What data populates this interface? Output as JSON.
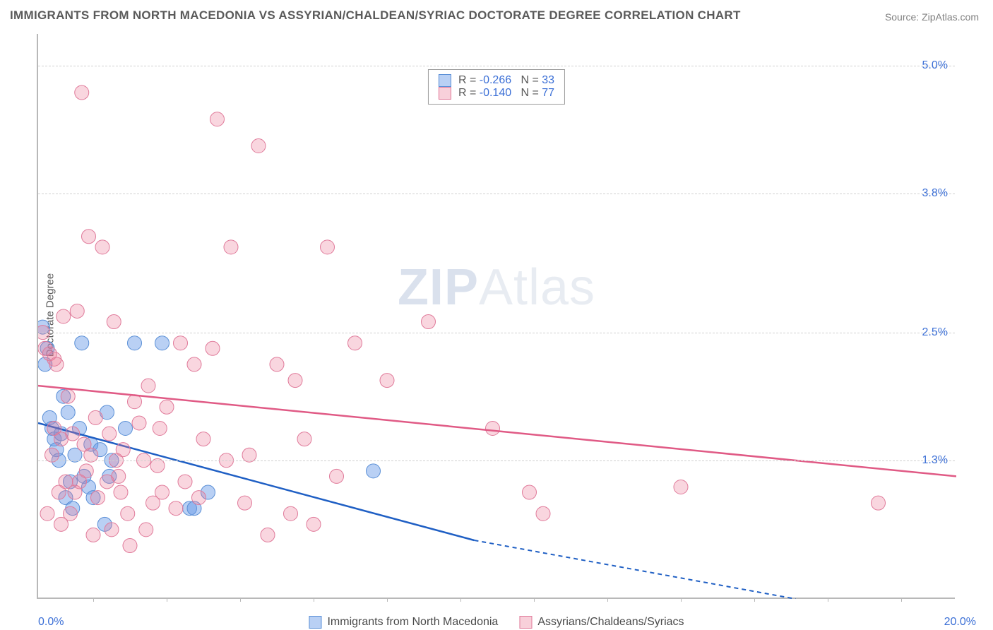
{
  "title": "IMMIGRANTS FROM NORTH MACEDONIA VS ASSYRIAN/CHALDEAN/SYRIAC DOCTORATE DEGREE CORRELATION CHART",
  "source": "Source: ZipAtlas.com",
  "ylabel": "Doctorate Degree",
  "watermark_zip": "ZIP",
  "watermark_rest": "Atlas",
  "chart": {
    "type": "scatter",
    "background_color": "#ffffff",
    "grid_color": "#d0d0d0",
    "axis_color": "#b8b8b8",
    "xlim": [
      0,
      20
    ],
    "ylim": [
      0,
      5.3
    ],
    "x_axis_labels": {
      "min": "0.0%",
      "max": "20.0%"
    },
    "x_tick_positions_pct": [
      6,
      14,
      22,
      30,
      38,
      46,
      54,
      62,
      70,
      78,
      86,
      94
    ],
    "y_ticks": [
      {
        "value": 1.3,
        "label": "1.3%"
      },
      {
        "value": 2.5,
        "label": "2.5%"
      },
      {
        "value": 3.8,
        "label": "3.8%"
      },
      {
        "value": 5.0,
        "label": "5.0%"
      }
    ],
    "series": [
      {
        "name": "Immigrants from North Macedonia",
        "fill_color": "rgba(100,150,230,0.45)",
        "stroke_color": "#5a8fd6",
        "trend_color": "#1f5fc4",
        "R": "-0.266",
        "N": "33",
        "marker_radius": 10,
        "trend_line": {
          "x1": 0,
          "y1": 1.65,
          "x2": 9.5,
          "y2": 0.55,
          "dashed_after_x": 9.5,
          "x3": 16.5,
          "y3": 0.0
        },
        "points": [
          [
            0.1,
            2.55
          ],
          [
            0.15,
            2.2
          ],
          [
            0.2,
            2.35
          ],
          [
            0.25,
            1.7
          ],
          [
            0.3,
            1.6
          ],
          [
            0.35,
            1.5
          ],
          [
            0.4,
            1.4
          ],
          [
            0.45,
            1.3
          ],
          [
            0.5,
            1.55
          ],
          [
            0.6,
            0.95
          ],
          [
            0.65,
            1.75
          ],
          [
            0.7,
            1.1
          ],
          [
            0.75,
            0.85
          ],
          [
            0.8,
            1.35
          ],
          [
            0.9,
            1.6
          ],
          [
            0.95,
            2.4
          ],
          [
            1.0,
            1.15
          ],
          [
            1.1,
            1.05
          ],
          [
            1.15,
            1.45
          ],
          [
            1.2,
            0.95
          ],
          [
            1.35,
            1.4
          ],
          [
            1.45,
            0.7
          ],
          [
            1.5,
            1.75
          ],
          [
            1.55,
            1.15
          ],
          [
            1.6,
            1.3
          ],
          [
            1.9,
            1.6
          ],
          [
            2.1,
            2.4
          ],
          [
            2.7,
            2.4
          ],
          [
            3.3,
            0.85
          ],
          [
            3.4,
            0.85
          ],
          [
            3.7,
            1.0
          ],
          [
            7.3,
            1.2
          ],
          [
            0.55,
            1.9
          ]
        ]
      },
      {
        "name": "Assyrians/Chaldeans/Syriacs",
        "fill_color": "rgba(235,120,150,0.30)",
        "stroke_color": "#e07a9a",
        "trend_color": "#e05a85",
        "R": "-0.140",
        "N": "77",
        "marker_radius": 10,
        "trend_line": {
          "x1": 0,
          "y1": 2.0,
          "x2": 20,
          "y2": 1.15
        },
        "points": [
          [
            0.1,
            2.5
          ],
          [
            0.15,
            2.35
          ],
          [
            0.2,
            0.8
          ],
          [
            0.25,
            2.3
          ],
          [
            0.3,
            1.35
          ],
          [
            0.35,
            2.25
          ],
          [
            0.35,
            1.6
          ],
          [
            0.4,
            2.2
          ],
          [
            0.45,
            1.0
          ],
          [
            0.5,
            0.7
          ],
          [
            0.5,
            1.5
          ],
          [
            0.55,
            2.65
          ],
          [
            0.6,
            1.1
          ],
          [
            0.65,
            1.9
          ],
          [
            0.7,
            0.8
          ],
          [
            0.75,
            1.55
          ],
          [
            0.8,
            1.0
          ],
          [
            0.85,
            2.7
          ],
          [
            0.9,
            1.1
          ],
          [
            0.95,
            4.75
          ],
          [
            1.0,
            1.45
          ],
          [
            1.05,
            1.2
          ],
          [
            1.1,
            3.4
          ],
          [
            1.15,
            1.35
          ],
          [
            1.2,
            0.6
          ],
          [
            1.25,
            1.7
          ],
          [
            1.3,
            0.95
          ],
          [
            1.4,
            3.3
          ],
          [
            1.5,
            1.1
          ],
          [
            1.55,
            1.55
          ],
          [
            1.6,
            0.65
          ],
          [
            1.65,
            2.6
          ],
          [
            1.7,
            1.3
          ],
          [
            1.75,
            1.15
          ],
          [
            1.8,
            1.0
          ],
          [
            1.85,
            1.4
          ],
          [
            1.95,
            0.8
          ],
          [
            2.0,
            0.5
          ],
          [
            2.1,
            1.85
          ],
          [
            2.2,
            1.65
          ],
          [
            2.3,
            1.3
          ],
          [
            2.4,
            2.0
          ],
          [
            2.5,
            0.9
          ],
          [
            2.6,
            1.25
          ],
          [
            2.65,
            1.6
          ],
          [
            2.7,
            1.0
          ],
          [
            2.8,
            1.8
          ],
          [
            3.0,
            0.85
          ],
          [
            3.1,
            2.4
          ],
          [
            3.2,
            1.1
          ],
          [
            3.4,
            2.2
          ],
          [
            3.5,
            0.95
          ],
          [
            3.6,
            1.5
          ],
          [
            3.8,
            2.35
          ],
          [
            3.9,
            4.5
          ],
          [
            4.1,
            1.3
          ],
          [
            4.2,
            3.3
          ],
          [
            4.5,
            0.9
          ],
          [
            4.6,
            1.35
          ],
          [
            4.8,
            4.25
          ],
          [
            5.0,
            0.6
          ],
          [
            5.2,
            2.2
          ],
          [
            5.5,
            0.8
          ],
          [
            5.6,
            2.05
          ],
          [
            5.8,
            1.5
          ],
          [
            6.0,
            0.7
          ],
          [
            6.3,
            3.3
          ],
          [
            6.5,
            1.15
          ],
          [
            6.9,
            2.4
          ],
          [
            7.6,
            2.05
          ],
          [
            8.5,
            2.6
          ],
          [
            9.9,
            1.6
          ],
          [
            10.7,
            1.0
          ],
          [
            11.0,
            0.8
          ],
          [
            14.0,
            1.05
          ],
          [
            18.3,
            0.9
          ],
          [
            2.35,
            0.65
          ]
        ]
      }
    ]
  }
}
